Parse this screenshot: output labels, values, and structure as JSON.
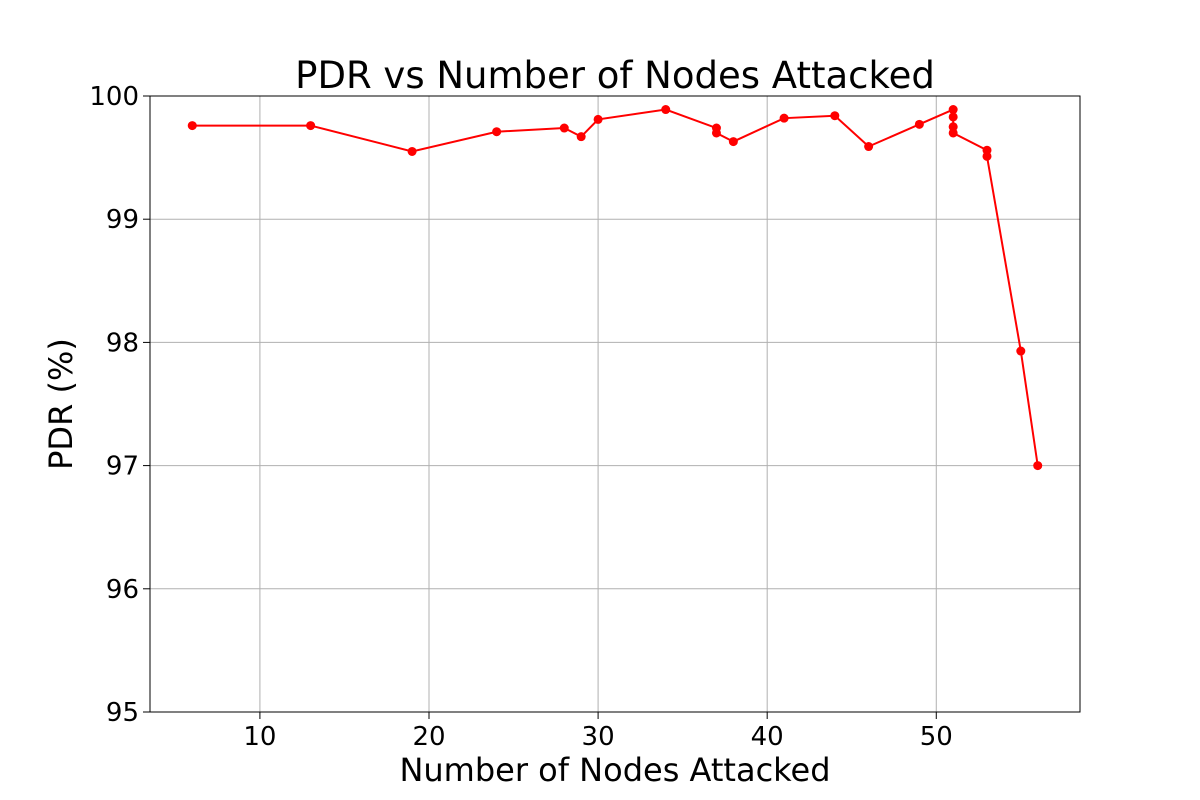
{
  "chart_data": {
    "type": "line",
    "title": "PDR vs Number of Nodes Attacked",
    "xlabel": "Number of Nodes Attacked",
    "ylabel": "PDR (%)",
    "xlim": [
      3.5,
      58.5
    ],
    "ylim": [
      95,
      100
    ],
    "xticks": [
      10,
      20,
      30,
      40,
      50
    ],
    "yticks": [
      95,
      96,
      97,
      98,
      99,
      100
    ],
    "grid": true,
    "series": [
      {
        "color": "#ff0000",
        "marker": "circle",
        "x": [
          6,
          13,
          19,
          24,
          28,
          29,
          30,
          34,
          37,
          37,
          38,
          41,
          44,
          46,
          49,
          51,
          51,
          51,
          51,
          53,
          53,
          55,
          56
        ],
        "y": [
          99.76,
          99.76,
          99.55,
          99.71,
          99.74,
          99.67,
          99.81,
          99.89,
          99.74,
          99.7,
          99.63,
          99.82,
          99.84,
          99.59,
          99.77,
          99.89,
          99.83,
          99.75,
          99.7,
          99.56,
          99.51,
          97.93,
          97.0
        ]
      }
    ]
  }
}
